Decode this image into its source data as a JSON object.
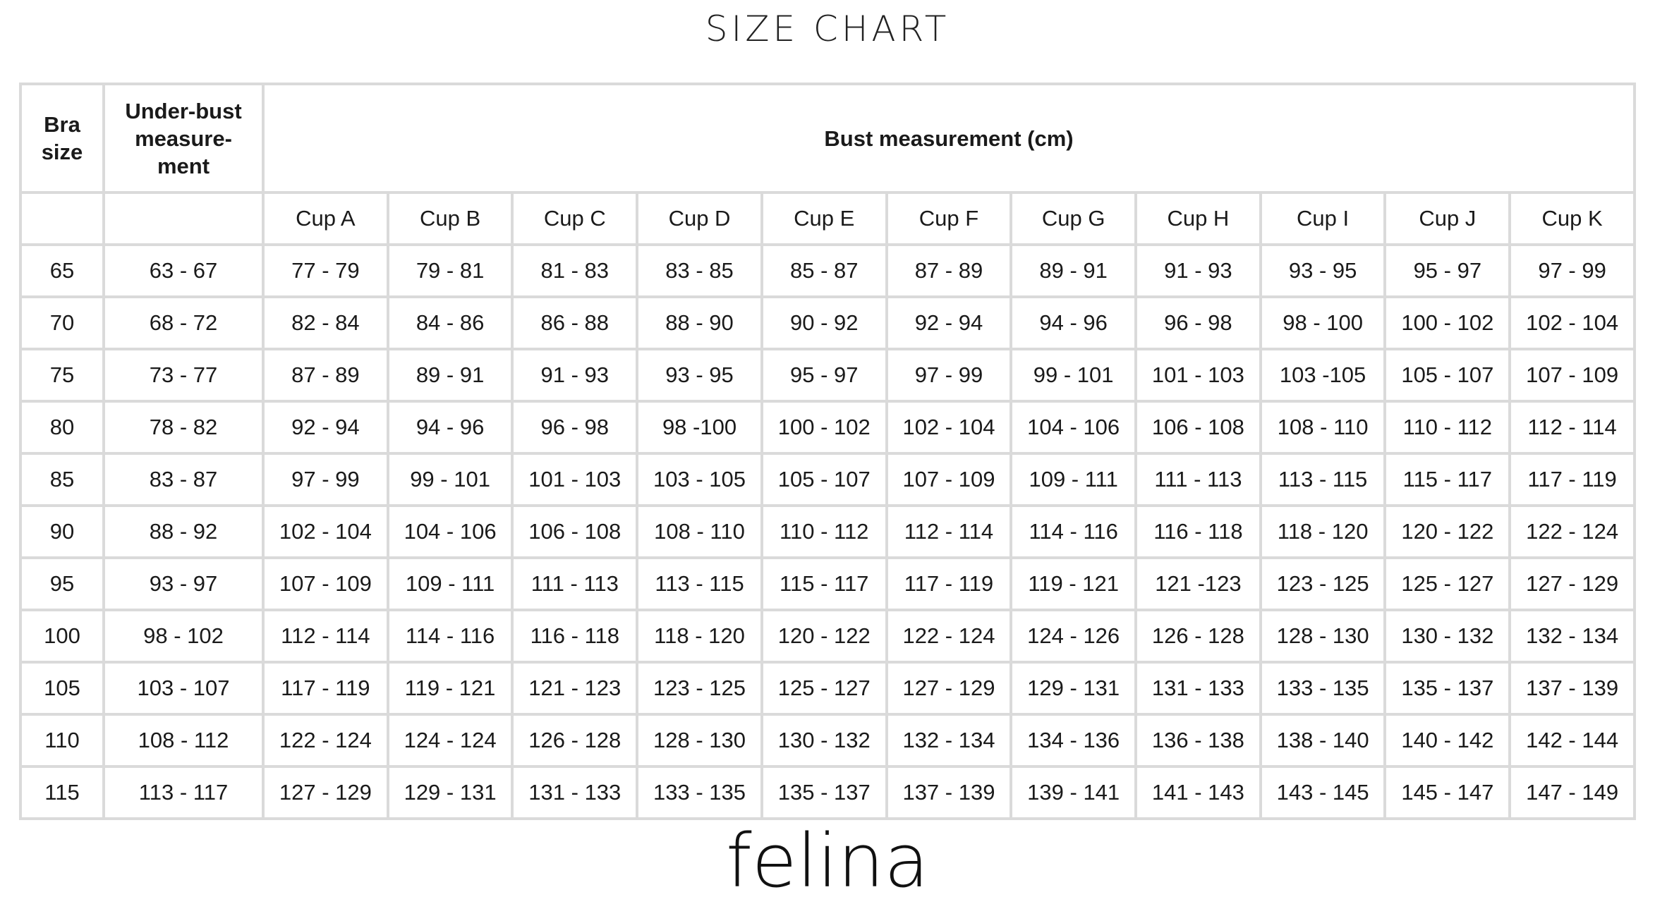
{
  "title": "SIZE CHART",
  "table": {
    "headers": {
      "bra_size": "Bra size",
      "under_bust": "Under-bust measure-ment",
      "bust": "Bust measurement (cm)"
    },
    "cups": [
      "Cup A",
      "Cup B",
      "Cup C",
      "Cup D",
      "Cup E",
      "Cup F",
      "Cup G",
      "Cup H",
      "Cup I",
      "Cup J",
      "Cup K"
    ],
    "rows": [
      {
        "size": "65",
        "underbust": "63 - 67",
        "cups": [
          "77 - 79",
          "79 - 81",
          "81 - 83",
          "83 - 85",
          "85 - 87",
          "87 - 89",
          "89 - 91",
          "91 - 93",
          "93 - 95",
          "95 - 97",
          "97 - 99"
        ]
      },
      {
        "size": "70",
        "underbust": "68 - 72",
        "cups": [
          "82 - 84",
          "84 - 86",
          "86 - 88",
          "88 - 90",
          "90 - 92",
          "92 - 94",
          "94 - 96",
          "96 - 98",
          "98 - 100",
          "100 - 102",
          "102 - 104"
        ]
      },
      {
        "size": "75",
        "underbust": "73 - 77",
        "cups": [
          "87 - 89",
          "89 - 91",
          "91 - 93",
          "93 - 95",
          "95 - 97",
          "97 - 99",
          "99 - 101",
          "101 - 103",
          "103 -105",
          "105 - 107",
          "107 - 109"
        ]
      },
      {
        "size": "80",
        "underbust": "78 - 82",
        "cups": [
          "92 - 94",
          "94 - 96",
          "96 - 98",
          "98 -100",
          "100 - 102",
          "102 - 104",
          "104 - 106",
          "106 - 108",
          "108 - 110",
          "110 - 112",
          "112 - 114"
        ]
      },
      {
        "size": "85",
        "underbust": "83 - 87",
        "cups": [
          "97 - 99",
          "99 - 101",
          "101 - 103",
          "103 - 105",
          "105 - 107",
          "107 - 109",
          "109 - 111",
          "111 - 113",
          "113 - 115",
          "115 - 117",
          "117 - 119"
        ]
      },
      {
        "size": "90",
        "underbust": "88 - 92",
        "cups": [
          "102 - 104",
          "104 - 106",
          "106 - 108",
          "108 - 110",
          "110 - 112",
          "112 - 114",
          "114 - 116",
          "116 - 118",
          "118 - 120",
          "120 - 122",
          "122 - 124"
        ]
      },
      {
        "size": "95",
        "underbust": "93 - 97",
        "cups": [
          "107 - 109",
          "109 - 111",
          "111 - 113",
          "113 - 115",
          "115 - 117",
          "117 - 119",
          "119 - 121",
          "121 -123",
          "123 - 125",
          "125 - 127",
          "127 - 129"
        ]
      },
      {
        "size": "100",
        "underbust": "98 - 102",
        "cups": [
          "112 - 114",
          "114 - 116",
          "116 - 118",
          "118 - 120",
          "120 - 122",
          "122 - 124",
          "124 - 126",
          "126 - 128",
          "128 - 130",
          "130 - 132",
          "132 - 134"
        ]
      },
      {
        "size": "105",
        "underbust": "103 - 107",
        "cups": [
          "117 - 119",
          "119 - 121",
          "121 - 123",
          "123 - 125",
          "125 - 127",
          "127 - 129",
          "129 - 131",
          "131 - 133",
          "133 - 135",
          "135 - 137",
          "137 - 139"
        ]
      },
      {
        "size": "110",
        "underbust": "108 - 112",
        "cups": [
          "122 - 124",
          "124 - 124",
          "126 - 128",
          "128 - 130",
          "130 - 132",
          "132 - 134",
          "134 - 136",
          "136 - 138",
          "138 - 140",
          "140 - 142",
          "142 - 144"
        ]
      },
      {
        "size": "115",
        "underbust": "113 - 117",
        "cups": [
          "127 - 129",
          "129 - 131",
          "131 - 133",
          "133 - 135",
          "135 - 137",
          "137 - 139",
          "139 - 141",
          "141 - 143",
          "143 - 145",
          "145 - 147",
          "147 - 149"
        ]
      }
    ]
  },
  "logo": "felina",
  "colors": {
    "border": "#dadada",
    "text": "#1a1a1a"
  }
}
